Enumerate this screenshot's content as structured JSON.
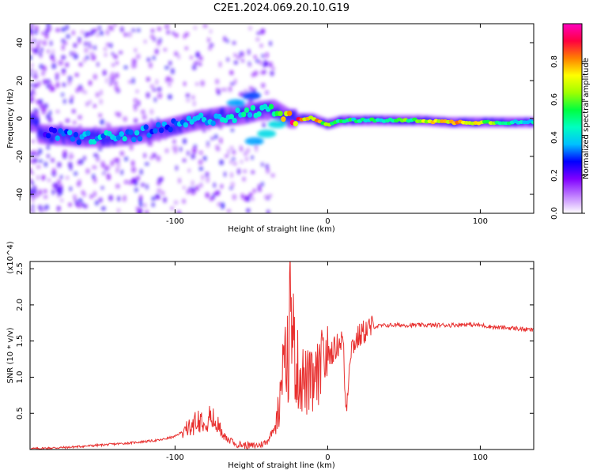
{
  "title": "C2E1.2024.069.20.10.G19",
  "chart_data": [
    {
      "type": "heatmap",
      "xlabel": "Height of straight line (km)",
      "ylabel": "Frequency (Hz)",
      "xlim": [
        -195,
        135
      ],
      "ylim": [
        -50,
        50
      ],
      "x_ticks": [
        "-100",
        "0",
        "100"
      ],
      "y_ticks": [
        "-40",
        "-20",
        "0",
        "20",
        "40"
      ],
      "grid": false,
      "colorbar": {
        "label": "Normalized spectral amplitude",
        "ticks": [
          "0.0",
          "0.2",
          "0.4",
          "0.6",
          "0.8"
        ],
        "range": [
          0,
          1
        ],
        "colors": [
          "#ffffff",
          "#c080ff",
          "#8000ff",
          "#0000ff",
          "#00c0ff",
          "#00ffc0",
          "#00ff40",
          "#a0ff00",
          "#ffff00",
          "#ff8000",
          "#ff0040",
          "#ff00c0"
        ]
      },
      "ridge": [
        {
          "x": -190,
          "y": -8,
          "a": 0.25
        },
        {
          "x": -175,
          "y": -9,
          "a": 0.35
        },
        {
          "x": -160,
          "y": -10,
          "a": 0.4
        },
        {
          "x": -145,
          "y": -10,
          "a": 0.4
        },
        {
          "x": -130,
          "y": -9,
          "a": 0.4
        },
        {
          "x": -115,
          "y": -7,
          "a": 0.35
        },
        {
          "x": -100,
          "y": -4,
          "a": 0.35
        },
        {
          "x": -85,
          "y": -1,
          "a": 0.4
        },
        {
          "x": -70,
          "y": 1,
          "a": 0.4
        },
        {
          "x": -55,
          "y": 2,
          "a": 0.45
        },
        {
          "x": -45,
          "y": 4,
          "a": 0.45
        },
        {
          "x": -35,
          "y": 5,
          "a": 0.5
        },
        {
          "x": -25,
          "y": 0,
          "a": 0.9
        },
        {
          "x": -10,
          "y": 0,
          "a": 0.85
        },
        {
          "x": 0,
          "y": -3,
          "a": 0.6
        },
        {
          "x": 10,
          "y": -1,
          "a": 0.55
        },
        {
          "x": 20,
          "y": -1,
          "a": 0.5
        },
        {
          "x": 40,
          "y": -1,
          "a": 0.55
        },
        {
          "x": 60,
          "y": -1,
          "a": 0.65
        },
        {
          "x": 80,
          "y": -2,
          "a": 0.85
        },
        {
          "x": 100,
          "y": -2,
          "a": 0.7
        },
        {
          "x": 120,
          "y": -2,
          "a": 0.5
        },
        {
          "x": 135,
          "y": -2,
          "a": 0.45
        }
      ],
      "branches": [
        {
          "x": -60,
          "y": 8,
          "a": 0.35
        },
        {
          "x": -50,
          "y": 12,
          "a": 0.3
        },
        {
          "x": -48,
          "y": -12,
          "a": 0.35
        },
        {
          "x": -40,
          "y": -8,
          "a": 0.4
        },
        {
          "x": -33,
          "y": -3,
          "a": 0.4
        }
      ]
    },
    {
      "type": "line",
      "xlabel": "Height of straight line (km)",
      "ylabel": "SNR (10 * v/v)",
      "y_multiplier": "(x10^4)",
      "xlim": [
        -195,
        135
      ],
      "ylim": [
        0,
        2.6
      ],
      "x_ticks": [
        "-100",
        "0",
        "100"
      ],
      "y_ticks": [
        "0.5",
        "1.0",
        "1.5",
        "2.0",
        "2.5"
      ],
      "grid": false,
      "series": [
        {
          "color": "#e8302f",
          "x": [
            -195,
            -170,
            -150,
            -130,
            -110,
            -100,
            -95,
            -90,
            -85,
            -80,
            -75,
            -70,
            -65,
            -60,
            -55,
            -50,
            -45,
            -40,
            -35,
            -32,
            -30,
            -28,
            -26,
            -24,
            -23,
            -22,
            -20,
            -15,
            -10,
            -5,
            0,
            5,
            10,
            12,
            15,
            20,
            25,
            30,
            40,
            60,
            80,
            90,
            100,
            110,
            120,
            135
          ],
          "y": [
            0.01,
            0.03,
            0.06,
            0.09,
            0.13,
            0.18,
            0.25,
            0.35,
            0.45,
            0.5,
            0.45,
            0.3,
            0.15,
            0.08,
            0.06,
            0.05,
            0.06,
            0.1,
            0.3,
            0.7,
            1.2,
            1.3,
            1.5,
            2.6,
            2.0,
            1.6,
            1.3,
            1.1,
            1.05,
            1.2,
            1.3,
            1.4,
            1.55,
            0.5,
            1.4,
            1.55,
            1.65,
            1.7,
            1.72,
            1.72,
            1.72,
            1.73,
            1.72,
            1.69,
            1.68,
            1.65
          ]
        }
      ]
    }
  ]
}
